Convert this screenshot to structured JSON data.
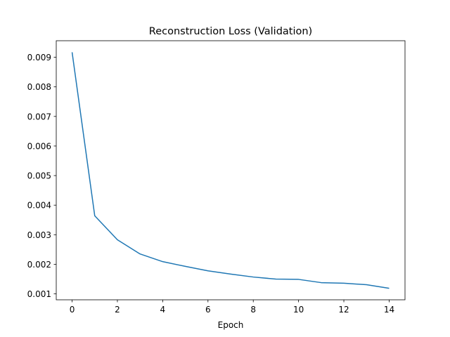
{
  "chart_data": {
    "type": "line",
    "title": "Reconstruction Loss (Validation)",
    "x_label": "Epoch",
    "x": [
      0,
      1,
      2,
      3,
      4,
      5,
      6,
      7,
      8,
      9,
      10,
      11,
      12,
      13,
      14
    ],
    "series": [
      {
        "color": "#1f77b4",
        "values": [
          0.00917,
          0.00364,
          0.00283,
          0.00235,
          0.00209,
          0.00193,
          0.00178,
          0.00167,
          0.00157,
          0.0015,
          0.00149,
          0.00138,
          0.00136,
          0.00131,
          0.00119
        ]
      }
    ],
    "xlim": [
      -0.7,
      14.7
    ],
    "xticks": [
      0,
      2,
      4,
      6,
      8,
      10,
      12,
      14
    ],
    "ylim": [
      0.0008,
      0.00956
    ],
    "yticks": [
      0.001,
      0.002,
      0.003,
      0.004,
      0.005,
      0.006,
      0.007,
      0.008,
      0.009
    ],
    "grid": false
  }
}
